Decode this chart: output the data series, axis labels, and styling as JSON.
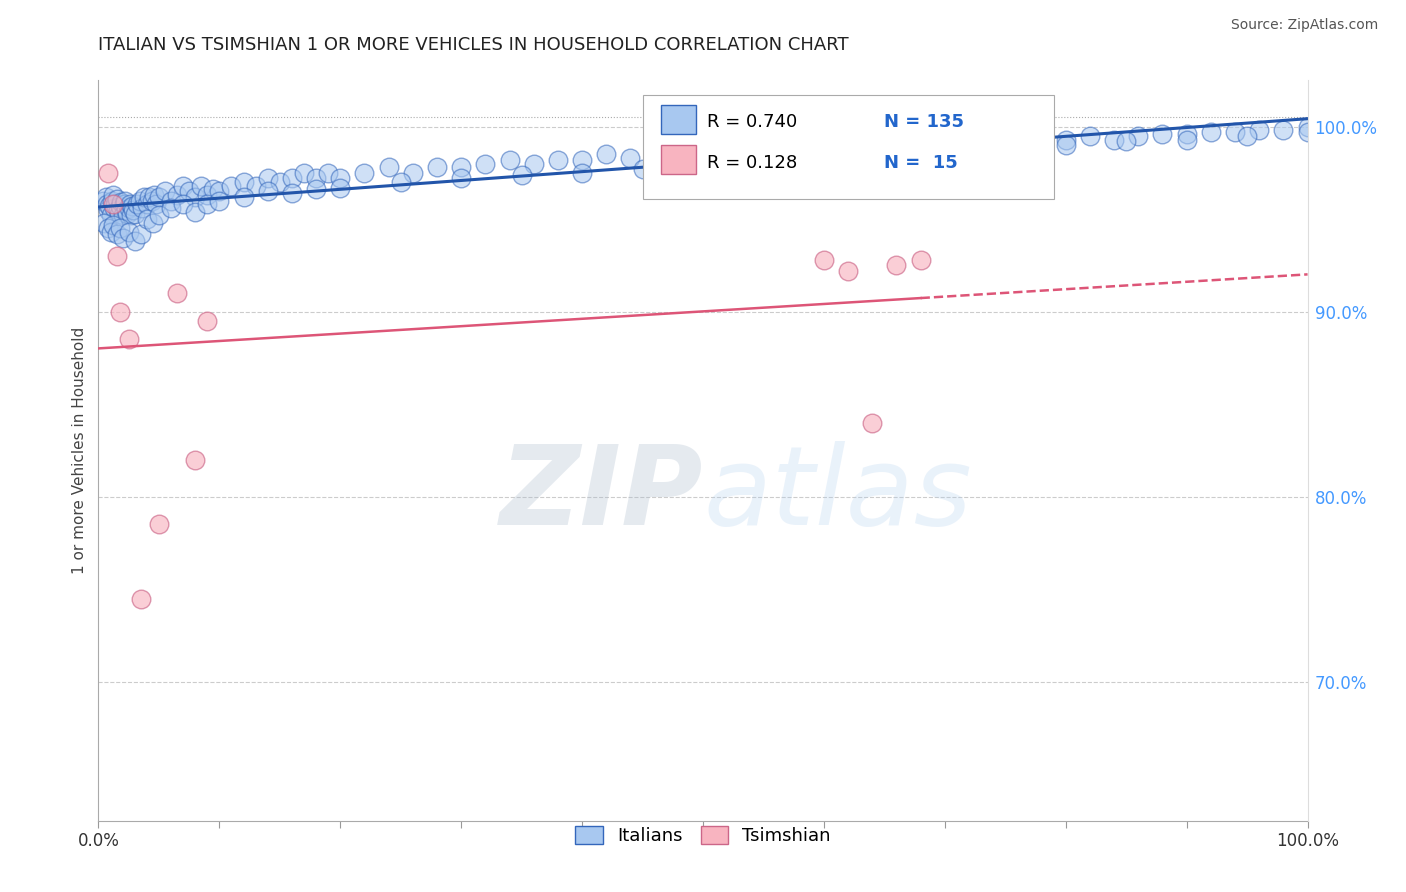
{
  "title": "ITALIAN VS TSIMSHIAN 1 OR MORE VEHICLES IN HOUSEHOLD CORRELATION CHART",
  "source_text": "Source: ZipAtlas.com",
  "ylabel": "1 or more Vehicles in Household",
  "xlim": [
    0.0,
    1.0
  ],
  "ylim": [
    0.625,
    1.025
  ],
  "yticks_right": [
    0.7,
    0.8,
    0.9,
    1.0
  ],
  "yticklabels_right": [
    "70.0%",
    "80.0%",
    "90.0%",
    "100.0%"
  ],
  "legend_R1": "R = 0.740",
  "legend_N1": "N = 135",
  "legend_R2": "R = 0.128",
  "legend_N2": "N =  15",
  "watermark_zip": "ZIP",
  "watermark_atlas": "atlas",
  "blue_face": "#A8C8F0",
  "blue_edge": "#3366BB",
  "pink_face": "#F8B4C0",
  "pink_edge": "#CC6688",
  "line_blue_color": "#2255AA",
  "line_pink_color": "#DD5577",
  "italians_label": "Italians",
  "tsimshian_label": "Tsimshian",
  "it_x": [
    0.004,
    0.006,
    0.007,
    0.008,
    0.009,
    0.01,
    0.011,
    0.012,
    0.013,
    0.014,
    0.015,
    0.016,
    0.017,
    0.018,
    0.019,
    0.02,
    0.021,
    0.022,
    0.023,
    0.024,
    0.025,
    0.026,
    0.027,
    0.028,
    0.029,
    0.03,
    0.032,
    0.034,
    0.036,
    0.038,
    0.04,
    0.042,
    0.044,
    0.046,
    0.048,
    0.05,
    0.055,
    0.06,
    0.065,
    0.07,
    0.075,
    0.08,
    0.085,
    0.09,
    0.095,
    0.1,
    0.11,
    0.12,
    0.13,
    0.14,
    0.15,
    0.16,
    0.17,
    0.18,
    0.19,
    0.2,
    0.22,
    0.24,
    0.26,
    0.28,
    0.3,
    0.32,
    0.34,
    0.36,
    0.38,
    0.4,
    0.42,
    0.44,
    0.46,
    0.48,
    0.5,
    0.52,
    0.54,
    0.56,
    0.58,
    0.6,
    0.62,
    0.64,
    0.66,
    0.68,
    0.7,
    0.72,
    0.74,
    0.76,
    0.78,
    0.8,
    0.82,
    0.84,
    0.86,
    0.88,
    0.9,
    0.92,
    0.94,
    0.96,
    0.98,
    1.0,
    0.005,
    0.008,
    0.01,
    0.012,
    0.015,
    0.018,
    0.02,
    0.025,
    0.03,
    0.035,
    0.04,
    0.045,
    0.05,
    0.06,
    0.07,
    0.08,
    0.09,
    0.1,
    0.12,
    0.14,
    0.16,
    0.18,
    0.2,
    0.25,
    0.3,
    0.35,
    0.4,
    0.45,
    0.5,
    0.55,
    0.6,
    0.65,
    0.7,
    0.75,
    0.8,
    0.85,
    0.9,
    0.95,
    1.0
  ],
  "it_y": [
    0.96,
    0.962,
    0.958,
    0.955,
    0.957,
    0.952,
    0.96,
    0.963,
    0.956,
    0.958,
    0.961,
    0.955,
    0.953,
    0.957,
    0.959,
    0.952,
    0.958,
    0.96,
    0.955,
    0.953,
    0.956,
    0.958,
    0.952,
    0.957,
    0.955,
    0.953,
    0.958,
    0.96,
    0.956,
    0.962,
    0.958,
    0.962,
    0.96,
    0.963,
    0.958,
    0.962,
    0.965,
    0.96,
    0.963,
    0.968,
    0.965,
    0.962,
    0.968,
    0.963,
    0.966,
    0.965,
    0.968,
    0.97,
    0.968,
    0.972,
    0.97,
    0.972,
    0.975,
    0.972,
    0.975,
    0.972,
    0.975,
    0.978,
    0.975,
    0.978,
    0.978,
    0.98,
    0.982,
    0.98,
    0.982,
    0.982,
    0.985,
    0.983,
    0.985,
    0.988,
    0.985,
    0.988,
    0.986,
    0.99,
    0.988,
    0.99,
    0.988,
    0.992,
    0.99,
    0.992,
    0.99,
    0.993,
    0.992,
    0.993,
    0.995,
    0.993,
    0.995,
    0.993,
    0.995,
    0.996,
    0.996,
    0.997,
    0.997,
    0.998,
    0.998,
    1.0,
    0.948,
    0.945,
    0.943,
    0.947,
    0.942,
    0.945,
    0.94,
    0.943,
    0.938,
    0.942,
    0.95,
    0.948,
    0.952,
    0.956,
    0.958,
    0.954,
    0.958,
    0.96,
    0.962,
    0.965,
    0.964,
    0.966,
    0.967,
    0.97,
    0.972,
    0.974,
    0.975,
    0.977,
    0.978,
    0.98,
    0.982,
    0.984,
    0.986,
    0.988,
    0.99,
    0.992,
    0.993,
    0.995,
    0.997
  ],
  "ts_x": [
    0.008,
    0.012,
    0.015,
    0.018,
    0.025,
    0.035,
    0.05,
    0.065,
    0.08,
    0.09,
    0.6,
    0.62,
    0.64,
    0.66,
    0.68
  ],
  "ts_y": [
    0.975,
    0.958,
    0.93,
    0.9,
    0.885,
    0.745,
    0.785,
    0.91,
    0.82,
    0.895,
    0.928,
    0.922,
    0.84,
    0.925,
    0.928
  ]
}
